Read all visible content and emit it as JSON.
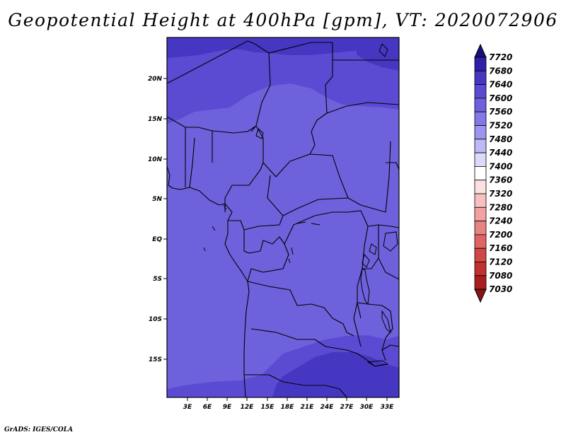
{
  "title": "Geopotential Height at 400hPa [gpm], VT: 2020072906",
  "credit": "GrADS: IGES/COLA",
  "map": {
    "lat_ticks": [
      "20N",
      "15N",
      "10N",
      "5N",
      "EQ",
      "5S",
      "10S",
      "15S"
    ],
    "lon_ticks": [
      "3E",
      "6E",
      "9E",
      "12E",
      "15E",
      "18E",
      "21E",
      "24E",
      "27E",
      "30E",
      "33E"
    ],
    "fill_colors": {
      "7560": "#6e61dc",
      "7600": "#5b4bd3",
      "7640": "#4637c2",
      "7680": "#2f1fa6",
      "border": "#000000"
    }
  },
  "colorbar": {
    "levels": [
      "7720",
      "7680",
      "7640",
      "7600",
      "7560",
      "7520",
      "7480",
      "7440",
      "7400",
      "7360",
      "7320",
      "7280",
      "7240",
      "7200",
      "7160",
      "7120",
      "7080",
      "7030"
    ],
    "colors": [
      "#1a0d7f",
      "#2f1fa6",
      "#4637c2",
      "#5b4bd3",
      "#6e61dc",
      "#8378e5",
      "#9d95ef",
      "#bdb8f6",
      "#dcd9fb",
      "#ffffff",
      "#fde0e0",
      "#f8c1c1",
      "#f1a3a3",
      "#e88383",
      "#df6464",
      "#d24646",
      "#c23030",
      "#a81e1e",
      "#8c1313"
    ]
  }
}
